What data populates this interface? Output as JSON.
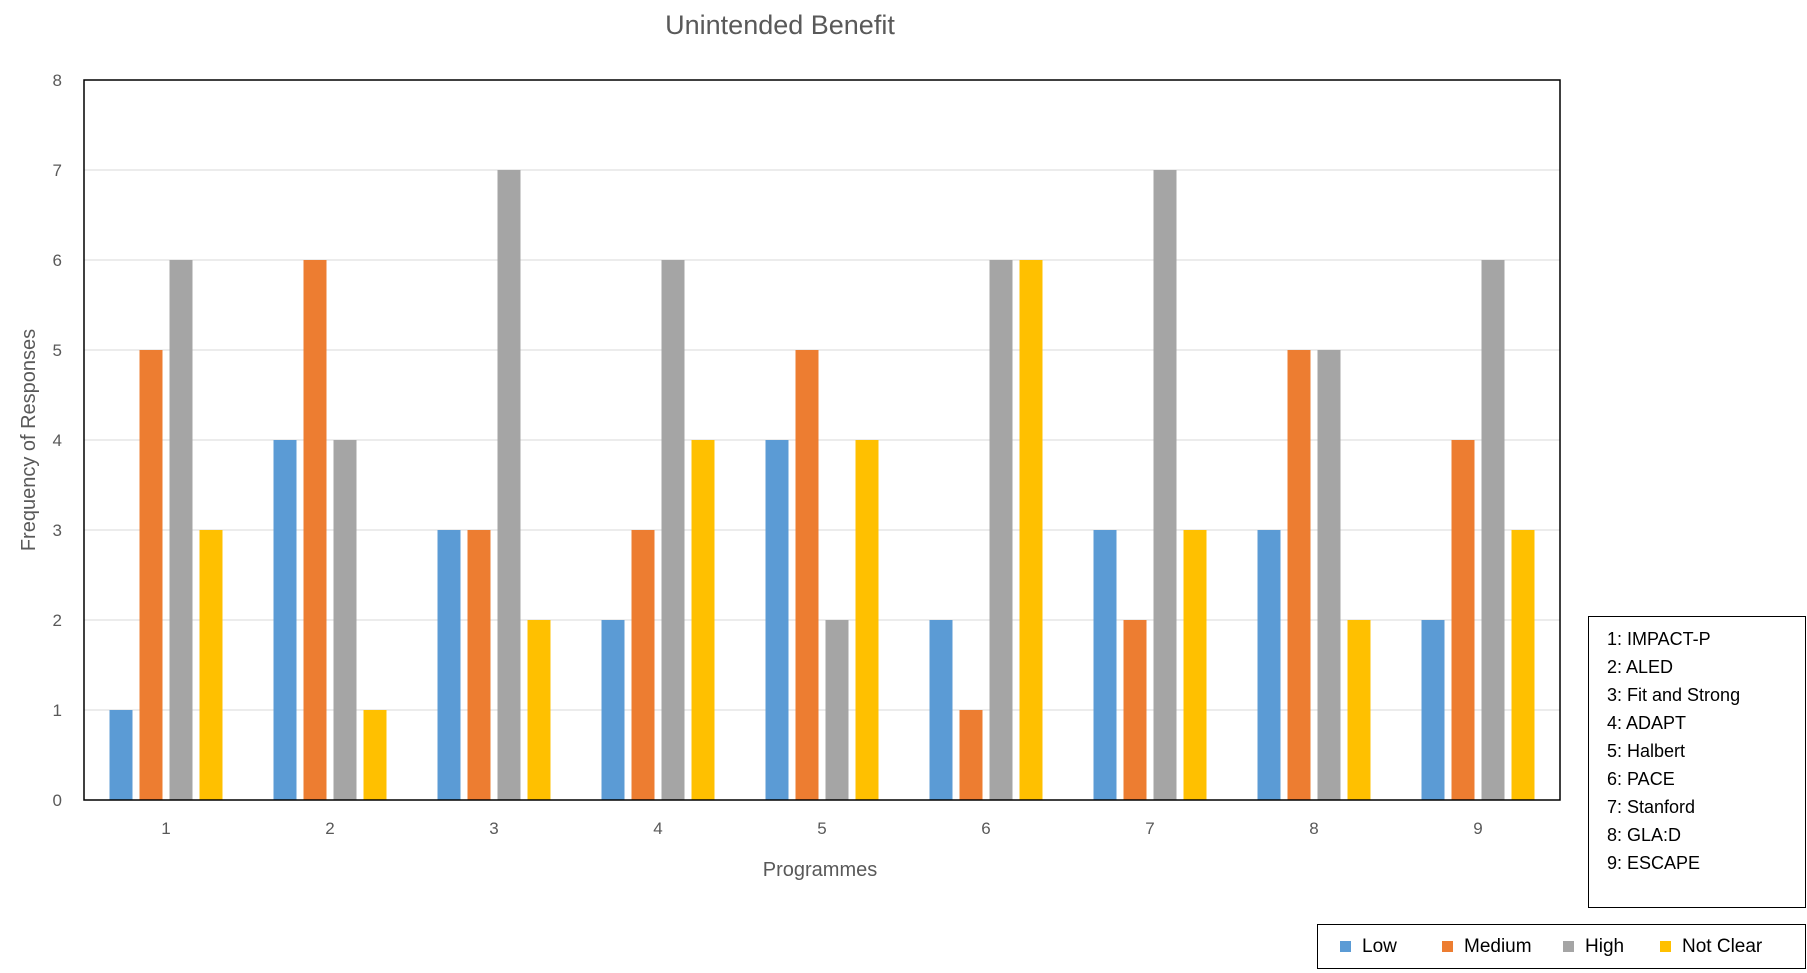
{
  "chart_data": {
    "type": "bar",
    "title": "Unintended Benefit",
    "xlabel": "Programmes",
    "ylabel": "Frequency of Responses",
    "categories": [
      "1",
      "2",
      "3",
      "4",
      "5",
      "6",
      "7",
      "8",
      "9"
    ],
    "ylim": [
      0,
      8
    ],
    "yticks": [
      "0",
      "1",
      "2",
      "3",
      "4",
      "5",
      "6",
      "7",
      "8"
    ],
    "grid": true,
    "legend_position": "bottom-right",
    "series": [
      {
        "name": "Low",
        "color": "#5b9bd5",
        "values": [
          1,
          4,
          3,
          2,
          4,
          2,
          3,
          3,
          2
        ]
      },
      {
        "name": "Medium",
        "color": "#ed7d31",
        "values": [
          5,
          6,
          3,
          3,
          5,
          1,
          2,
          5,
          4
        ]
      },
      {
        "name": "High",
        "color": "#a5a5a5",
        "values": [
          6,
          4,
          7,
          6,
          2,
          6,
          7,
          5,
          6
        ]
      },
      {
        "name": "Not Clear",
        "color": "#ffc000",
        "values": [
          3,
          1,
          2,
          4,
          4,
          6,
          3,
          2,
          3
        ]
      }
    ]
  },
  "programme_key": [
    "1: IMPACT-P",
    "2: ALED",
    "3: Fit and Strong",
    "4: ADAPT",
    "5: Halbert",
    "6: PACE",
    "7: Stanford",
    "8: GLA:D",
    "9: ESCAPE"
  ]
}
